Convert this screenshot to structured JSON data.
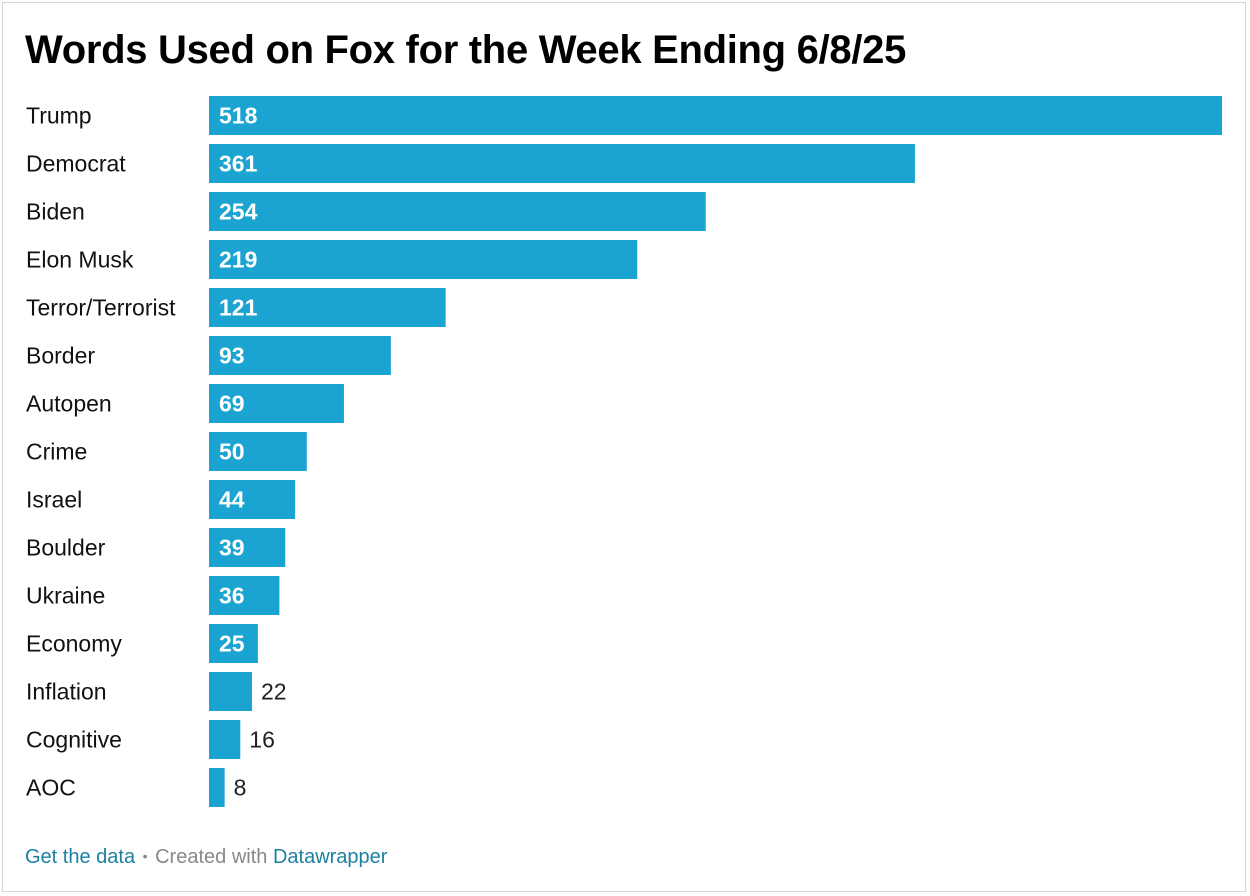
{
  "chart_data": {
    "type": "bar",
    "orientation": "horizontal",
    "title": "Words Used on Fox for the Week Ending 6/8/25",
    "categories": [
      "Trump",
      "Democrat",
      "Biden",
      "Elon Musk",
      "Terror/Terrorist",
      "Border",
      "Autopen",
      "Crime",
      "Israel",
      "Boulder",
      "Ukraine",
      "Economy",
      "Inflation",
      "Cognitive",
      "AOC"
    ],
    "values": [
      518,
      361,
      254,
      219,
      121,
      93,
      69,
      50,
      44,
      39,
      36,
      25,
      22,
      16,
      8
    ],
    "xlim": [
      0,
      518
    ],
    "xlabel": "",
    "ylabel": "",
    "grid": false,
    "bar_color": "#1ba3d1",
    "label_inside_color": "#ffffff",
    "label_outside_color": "#222222"
  },
  "footer": {
    "get_data": "Get the data",
    "separator": "•",
    "created_with": "Created with",
    "tool": "Datawrapper"
  }
}
